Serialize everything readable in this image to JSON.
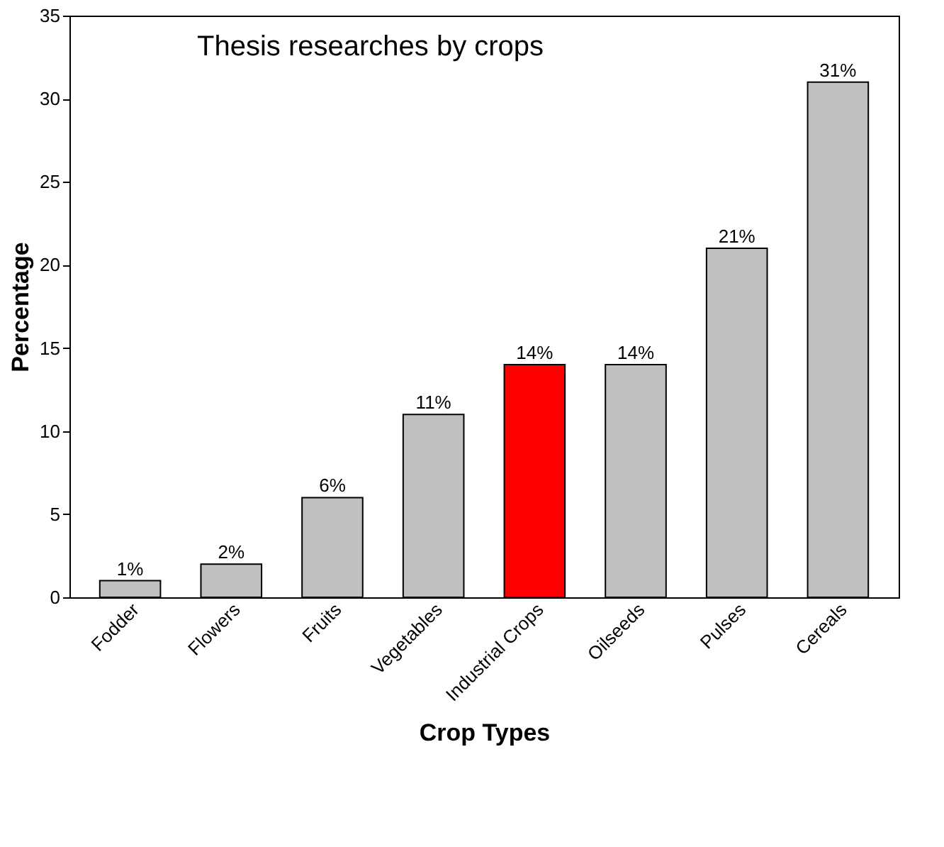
{
  "chart_data": {
    "type": "bar",
    "title": "Thesis researches by crops",
    "xlabel": "Crop Types",
    "ylabel": "Percentage",
    "categories": [
      "Fodder",
      "Flowers",
      "Fruits",
      "Vegetables",
      "Industrial Crops",
      "Oilseeds",
      "Pulses",
      "Cereals"
    ],
    "values": [
      1,
      2,
      6,
      11,
      14,
      14,
      21,
      31
    ],
    "colors": [
      "#c0c0c0",
      "#c0c0c0",
      "#c0c0c0",
      "#c0c0c0",
      "#ff0000",
      "#c0c0c0",
      "#c0c0c0",
      "#c0c0c0"
    ],
    "value_labels": [
      "1%",
      "2%",
      "6%",
      "11%",
      "14%",
      "14%",
      "21%",
      "31%"
    ],
    "ylim": [
      0,
      35
    ],
    "yticks": [
      0,
      5,
      10,
      15,
      20,
      25,
      30,
      35
    ],
    "grid": false
  }
}
